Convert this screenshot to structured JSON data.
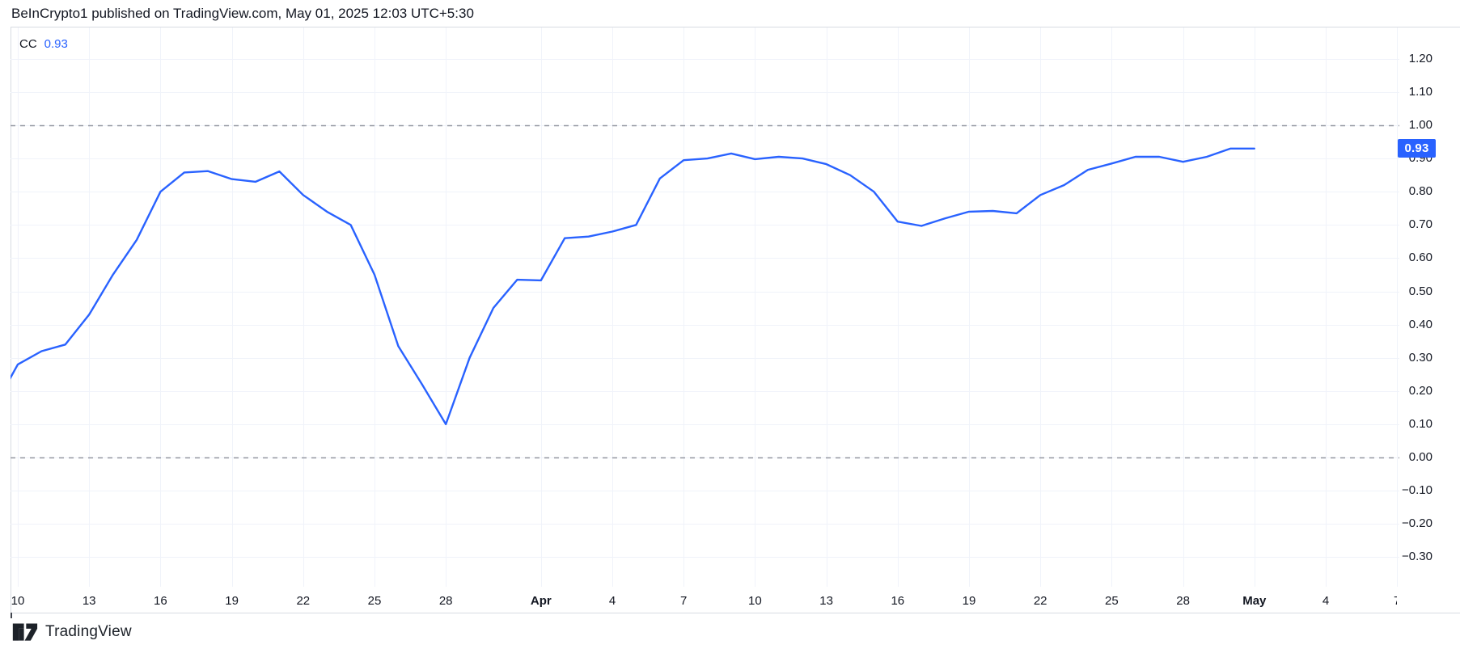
{
  "header": {
    "title": "BeInCrypto1 published on TradingView.com, May 01, 2025 12:03 UTC+5:30"
  },
  "legend": {
    "indicator": "CC",
    "value": "0.93"
  },
  "price_axis": {
    "badge": {
      "text": "0.93",
      "color": "#2962FF"
    }
  },
  "time_axis": {
    "ticks": [
      {
        "label": "10",
        "d": 0
      },
      {
        "label": "13",
        "d": 3
      },
      {
        "label": "16",
        "d": 6
      },
      {
        "label": "19",
        "d": 9
      },
      {
        "label": "22",
        "d": 12
      },
      {
        "label": "25",
        "d": 15
      },
      {
        "label": "28",
        "d": 18
      },
      {
        "label": "Apr",
        "d": 22,
        "bold": true
      },
      {
        "label": "4",
        "d": 25
      },
      {
        "label": "7",
        "d": 28
      },
      {
        "label": "10",
        "d": 31
      },
      {
        "label": "13",
        "d": 34
      },
      {
        "label": "16",
        "d": 37
      },
      {
        "label": "19",
        "d": 40
      },
      {
        "label": "22",
        "d": 43
      },
      {
        "label": "25",
        "d": 46
      },
      {
        "label": "28",
        "d": 49
      },
      {
        "label": "May",
        "d": 52,
        "bold": true
      },
      {
        "label": "4",
        "d": 55
      },
      {
        "label": "7",
        "d": 58
      }
    ]
  },
  "footer": {
    "brand": "TradingView"
  },
  "colors": {
    "accent": "#2962FF",
    "text": "#131722",
    "grid": "#F0F3FA",
    "frame": "#D8DBE2",
    "dashed": "#9598A1",
    "background": "#FFFFFF"
  },
  "chart_data": {
    "type": "line",
    "title": "CC",
    "legend_position": "top-left",
    "grid": true,
    "ylim": [
      -0.35,
      1.27
    ],
    "y_ticks": [
      1.2,
      1.1,
      1.0,
      0.9,
      0.8,
      0.7,
      0.6,
      0.5,
      0.4,
      0.3,
      0.2,
      0.1,
      0.0,
      -0.1,
      -0.2,
      -0.3
    ],
    "reference_lines": [
      1.0,
      0.0
    ],
    "last_value": 0.93,
    "x": [
      "Mar 9",
      "Mar 10",
      "Mar 11",
      "Mar 12",
      "Mar 13",
      "Mar 14",
      "Mar 15",
      "Mar 16",
      "Mar 17",
      "Mar 18",
      "Mar 19",
      "Mar 20",
      "Mar 21",
      "Mar 22",
      "Mar 23",
      "Mar 24",
      "Mar 25",
      "Mar 26",
      "Mar 27",
      "Mar 28",
      "Mar 29",
      "Mar 30",
      "Mar 31",
      "Apr 1",
      "Apr 2",
      "Apr 3",
      "Apr 4",
      "Apr 5",
      "Apr 6",
      "Apr 7",
      "Apr 8",
      "Apr 9",
      "Apr 10",
      "Apr 11",
      "Apr 12",
      "Apr 13",
      "Apr 14",
      "Apr 15",
      "Apr 16",
      "Apr 17",
      "Apr 18",
      "Apr 19",
      "Apr 20",
      "Apr 21",
      "Apr 22",
      "Apr 23",
      "Apr 24",
      "Apr 25",
      "Apr 26",
      "Apr 27",
      "Apr 28",
      "Apr 29",
      "Apr 30",
      "May 1"
    ],
    "series": [
      {
        "name": "CC",
        "color": "#2962FF",
        "values": [
          0.15,
          0.28,
          0.32,
          0.34,
          0.43,
          0.55,
          0.655,
          0.8,
          0.858,
          0.862,
          0.838,
          0.83,
          0.861,
          0.79,
          0.74,
          0.7,
          0.55,
          0.335,
          0.22,
          0.1,
          0.3,
          0.45,
          0.535,
          0.533,
          0.66,
          0.665,
          0.68,
          0.7,
          0.84,
          0.895,
          0.9,
          0.915,
          0.898,
          0.905,
          0.9,
          0.883,
          0.85,
          0.8,
          0.71,
          0.697,
          0.72,
          0.74,
          0.742,
          0.735,
          0.79,
          0.82,
          0.866,
          0.885,
          0.905,
          0.905,
          0.89,
          0.905,
          0.93,
          0.93
        ]
      }
    ]
  }
}
